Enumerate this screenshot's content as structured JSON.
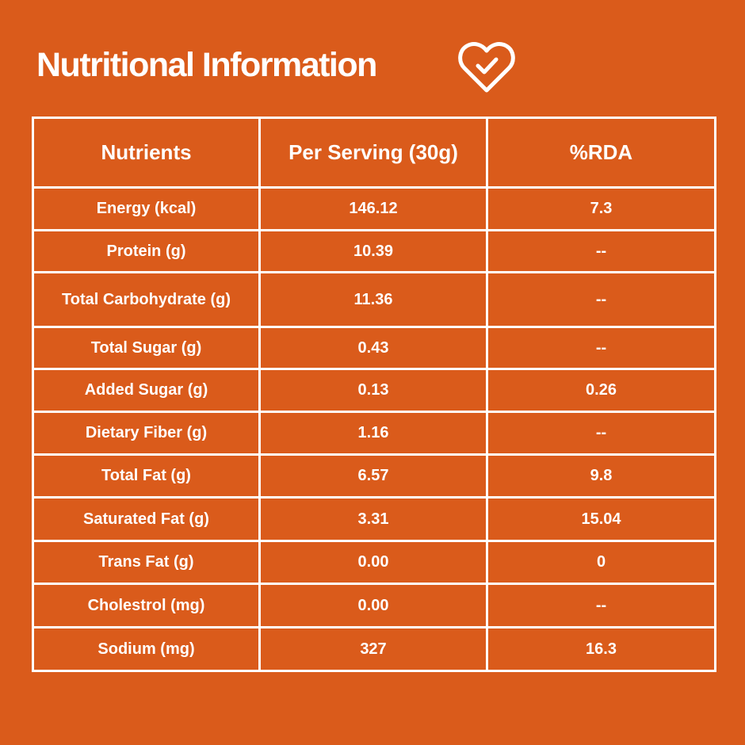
{
  "title": "Nutritional Information",
  "icon": "heart-check-icon",
  "colors": {
    "background": "#DA5B1B",
    "foreground": "#FFFFFF"
  },
  "table": {
    "headers": [
      "Nutrients",
      "Per Serving (30g)",
      "%RDA"
    ],
    "rows": [
      [
        "Energy (kcal)",
        "146.12",
        "7.3"
      ],
      [
        "Protein (g)",
        "10.39",
        "--"
      ],
      [
        "Total Carbohydrate (g)",
        "11.36",
        "--"
      ],
      [
        "Total Sugar (g)",
        "0.43",
        "--"
      ],
      [
        "Added Sugar (g)",
        "0.13",
        "0.26"
      ],
      [
        "Dietary Fiber (g)",
        "1.16",
        "--"
      ],
      [
        "Total Fat (g)",
        "6.57",
        "9.8"
      ],
      [
        "Saturated Fat (g)",
        "3.31",
        "15.04"
      ],
      [
        "Trans Fat (g)",
        "0.00",
        "0"
      ],
      [
        "Cholestrol (mg)",
        "0.00",
        "--"
      ],
      [
        "Sodium (mg)",
        "327",
        "16.3"
      ]
    ]
  }
}
